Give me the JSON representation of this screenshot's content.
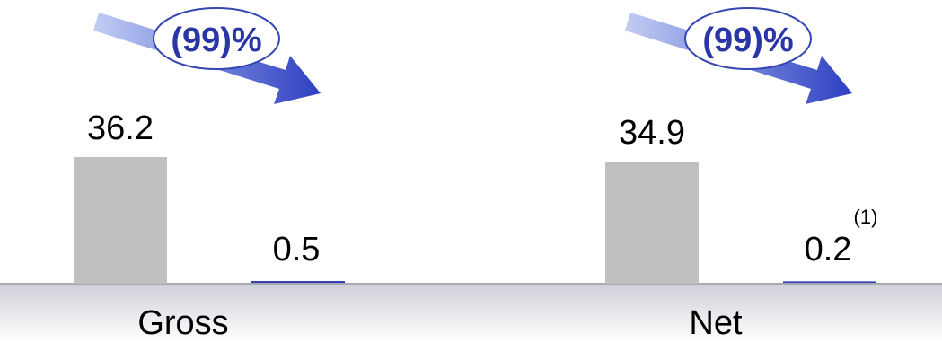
{
  "chart_data": {
    "type": "bar",
    "categories": [
      "Gross",
      "Net"
    ],
    "series": [
      {
        "values": [
          36.2,
          34.9
        ]
      },
      {
        "values": [
          0.5,
          0.2
        ]
      }
    ],
    "data_labels": [
      [
        "36.2",
        "0.5"
      ],
      [
        "34.9",
        "0.2"
      ]
    ],
    "footnote_marks": [
      {
        "category": "Net",
        "text": "(1)"
      }
    ],
    "annotations": [
      {
        "category": "Gross",
        "text": "(99)%",
        "shape": "arrow-down-right"
      },
      {
        "category": "Net",
        "text": "(99)%",
        "shape": "arrow-down-right"
      }
    ],
    "ylim": [
      0,
      40
    ],
    "grid": false,
    "legend": "none",
    "colors": {
      "bar_primary": "#c0c0c0",
      "bar_secondary": "#2f3fae",
      "baseline": "#a8a8b4",
      "annotation_text": "#2a36a6",
      "annotation_stroke": "#3646b0",
      "arrow_dark": "#2f3fc0",
      "arrow_light": "#b9c4ee"
    }
  }
}
